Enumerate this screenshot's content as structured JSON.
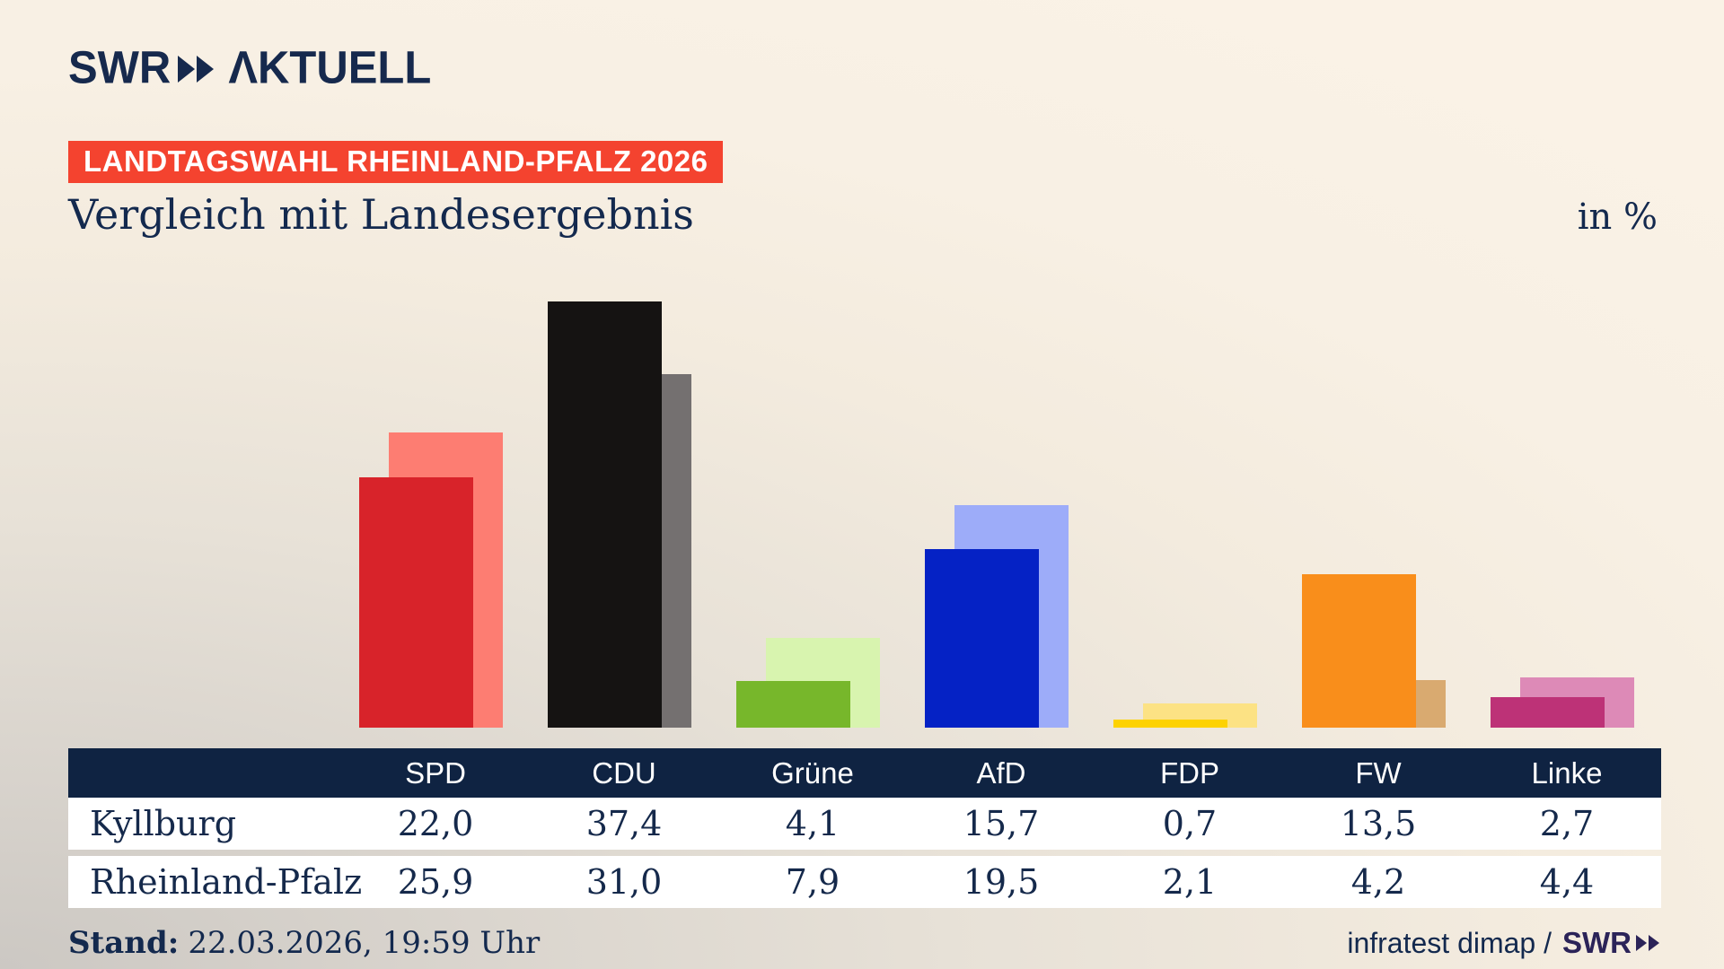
{
  "brand": {
    "swr": "SWR",
    "aktuell": "ΛKTUELL"
  },
  "badge": {
    "text": "LANDTAGSWAHL RHEINLAND-PFALZ 2026",
    "bg": "#f4432f"
  },
  "title": "Vergleich mit Landesergebnis",
  "unit_label": "in %",
  "colors": {
    "navy_text": "#13294e",
    "table_header_bg": "#0f2342",
    "badge_bg": "#f4432f",
    "logo_navy": "#16294d",
    "credit_brand": "#2b2358"
  },
  "chart_data": {
    "type": "bar",
    "title": "Vergleich mit Landesergebnis",
    "unit": "%",
    "grid": false,
    "legend": "table",
    "ylim": [
      0,
      40
    ],
    "categories": [
      "SPD",
      "CDU",
      "Grüne",
      "AfD",
      "FDP",
      "FW",
      "Linke"
    ],
    "series": [
      {
        "name": "Kyllburg",
        "role": "front",
        "values": [
          22.0,
          37.4,
          4.1,
          15.7,
          0.7,
          13.5,
          2.7
        ],
        "labels": [
          "22,0",
          "37,4",
          "4,1",
          "15,7",
          "0,7",
          "13,5",
          "2,7"
        ],
        "colors": [
          "#d8232a",
          "#151312",
          "#77b72b",
          "#0522c5",
          "#fdd203",
          "#f98e1b",
          "#bd3277"
        ]
      },
      {
        "name": "Rheinland-Pfalz",
        "role": "back",
        "values": [
          25.9,
          31.0,
          7.9,
          19.5,
          2.1,
          4.2,
          4.4
        ],
        "labels": [
          "25,9",
          "31,0",
          "7,9",
          "19,5",
          "2,1",
          "4,2",
          "4,4"
        ],
        "colors": [
          "#fd7d72",
          "#747070",
          "#d8f4af",
          "#9dacf9",
          "#fce284",
          "#d9aa70",
          "#dd8ab7"
        ]
      }
    ]
  },
  "footer": {
    "stand_label": "Stand:",
    "stand_value": "22.03.2026, 19:59 Uhr",
    "credit_text": "infratest dimap /",
    "credit_brand": "SWR"
  }
}
